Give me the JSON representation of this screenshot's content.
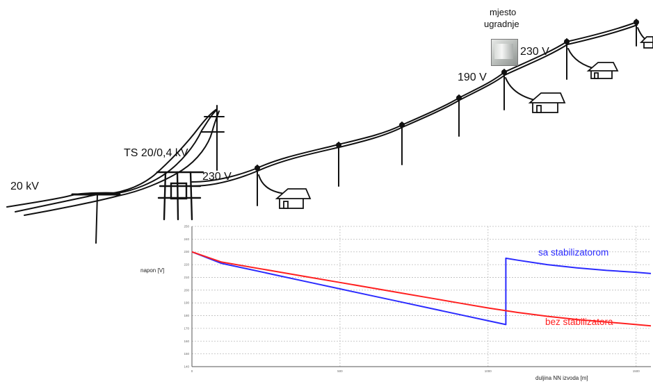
{
  "labels": {
    "hv": "20 kV",
    "substation": "TS 20/0,4 kV",
    "v_start": "230 V",
    "v_drop": "190 V",
    "v_after": "230 V",
    "install_line1": "mjesto",
    "install_line2": "ugradnje"
  },
  "chart_data": {
    "type": "line",
    "title": "",
    "xlabel": "duljina NN izvoda [m]",
    "ylabel": "napon [V]",
    "xlim": [
      0,
      1550
    ],
    "ylim": [
      140,
      250
    ],
    "x_ticks": [
      "0",
      "500",
      "1000",
      "1500"
    ],
    "y_ticks": [
      "250",
      "240",
      "230",
      "220",
      "210",
      "200",
      "190",
      "180",
      "170",
      "160",
      "150",
      "140"
    ],
    "grid": true,
    "legend": "labels next to lines",
    "series": [
      {
        "name": "sa stabilizatorom",
        "color": "#2b2bff",
        "x": [
          0,
          100,
          200,
          300,
          400,
          500,
          600,
          700,
          800,
          900,
          1000,
          1060,
          1060,
          1100,
          1200,
          1300,
          1400,
          1500,
          1550
        ],
        "y": [
          230,
          221,
          216,
          211,
          206,
          201,
          196,
          191,
          186,
          181,
          176,
          173,
          225,
          223.5,
          220,
          217.5,
          215.5,
          214,
          213
        ]
      },
      {
        "name": "bez stabilizatora",
        "color": "#ff2020",
        "x": [
          0,
          100,
          200,
          300,
          400,
          500,
          600,
          700,
          800,
          900,
          1000,
          1100,
          1200,
          1300,
          1400,
          1500,
          1550
        ],
        "y": [
          230,
          222,
          218,
          214,
          210,
          206,
          202,
          198,
          194,
          190,
          186,
          182.5,
          179.5,
          177,
          175,
          173,
          172
        ]
      }
    ]
  }
}
